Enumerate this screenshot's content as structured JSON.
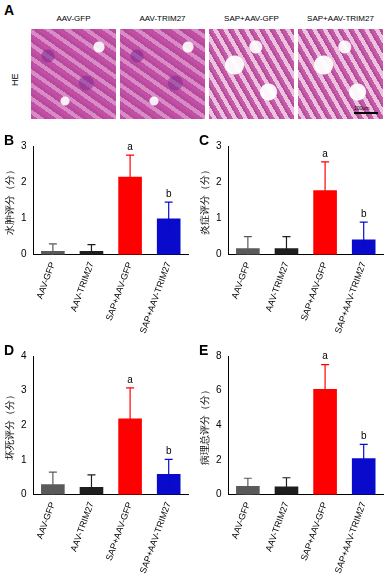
{
  "panel_a": {
    "label": "A",
    "row_label": "HE",
    "images": [
      "AAV-GFP",
      "AAV-TRIM27",
      "SAP+AAV-GFP",
      "SAP+AAV-TRIM27"
    ],
    "scale_bar": "100μm"
  },
  "chart_data": [
    {
      "type": "bar",
      "title": "B",
      "y_label": "水肿评分（分）",
      "categories": [
        "AAV-GFP",
        "AAV-TRIM27",
        "SAP+AAV-GFP",
        "SAP+AAV-TRIM27"
      ],
      "values": [
        0.1,
        0.1,
        2.15,
        1.0
      ],
      "errors": [
        0.2,
        0.18,
        0.6,
        0.45
      ],
      "annotations": [
        null,
        null,
        "a",
        "b"
      ],
      "colors": [
        "#5a5a5a",
        "#1e1e1e",
        "#ff0000",
        "#0a0acd"
      ],
      "ylim": [
        0,
        3
      ],
      "yticks": [
        0,
        1,
        2,
        3
      ],
      "grid": false
    },
    {
      "type": "bar",
      "title": "C",
      "y_label": "炎症评分（分）",
      "categories": [
        "AAV-GFP",
        "AAV-TRIM27",
        "SAP+AAV-GFP",
        "SAP+AAV-TRIM27"
      ],
      "values": [
        0.18,
        0.18,
        1.78,
        0.42
      ],
      "errors": [
        0.32,
        0.32,
        0.78,
        0.48
      ],
      "annotations": [
        null,
        null,
        "a",
        "b"
      ],
      "colors": [
        "#5a5a5a",
        "#1e1e1e",
        "#ff0000",
        "#0a0acd"
      ],
      "ylim": [
        0,
        3
      ],
      "yticks": [
        0,
        1,
        2,
        3
      ],
      "grid": false
    },
    {
      "type": "bar",
      "title": "D",
      "y_label": "坏死评分（分）",
      "categories": [
        "AAV-GFP",
        "AAV-TRIM27",
        "SAP+AAV-GFP",
        "SAP+AAV-TRIM27"
      ],
      "values": [
        0.3,
        0.22,
        2.2,
        0.6
      ],
      "errors": [
        0.35,
        0.35,
        0.88,
        0.42
      ],
      "annotations": [
        null,
        null,
        "a",
        "b"
      ],
      "colors": [
        "#5a5a5a",
        "#1e1e1e",
        "#ff0000",
        "#0a0acd"
      ],
      "ylim": [
        0,
        4
      ],
      "yticks": [
        0,
        1,
        2,
        3,
        4
      ],
      "grid": false
    },
    {
      "type": "bar",
      "title": "E",
      "y_label": "病理总评分（分）",
      "categories": [
        "AAV-GFP",
        "AAV-TRIM27",
        "SAP+AAV-GFP",
        "SAP+AAV-TRIM27"
      ],
      "values": [
        0.5,
        0.48,
        6.1,
        2.1
      ],
      "errors": [
        0.45,
        0.5,
        1.4,
        0.8
      ],
      "annotations": [
        null,
        null,
        "a",
        "b"
      ],
      "colors": [
        "#5a5a5a",
        "#1e1e1e",
        "#ff0000",
        "#0a0acd"
      ],
      "ylim": [
        0,
        8
      ],
      "yticks": [
        0,
        2,
        4,
        6,
        8
      ],
      "grid": false
    }
  ]
}
